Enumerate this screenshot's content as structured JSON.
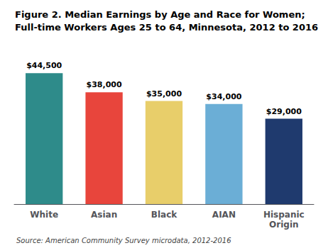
{
  "chart_data": {
    "type": "bar",
    "title": "Figure 2. Median Earnings by Age and Race for Women;\nFull-time Workers Ages 25 to 64, Minnesota, 2012 to 2016",
    "categories": [
      "White",
      "Asian",
      "Black",
      "AIAN",
      "Hispanic\nOrigin"
    ],
    "values": [
      44500,
      38000,
      35000,
      34000,
      29000
    ],
    "value_labels": [
      "$44,500",
      "$38,000",
      "$35,000",
      "$34,000",
      "$29,000"
    ],
    "colors": [
      "#2E8B8A",
      "#E8453C",
      "#E8CE6A",
      "#6BAED6",
      "#1F3A6E"
    ],
    "ylim": [
      0,
      52000
    ],
    "grid": false,
    "data_labels": true,
    "tick_labels": "x",
    "annotations": [
      "Source: American Community Survey microdata, 2012-2016"
    ]
  }
}
